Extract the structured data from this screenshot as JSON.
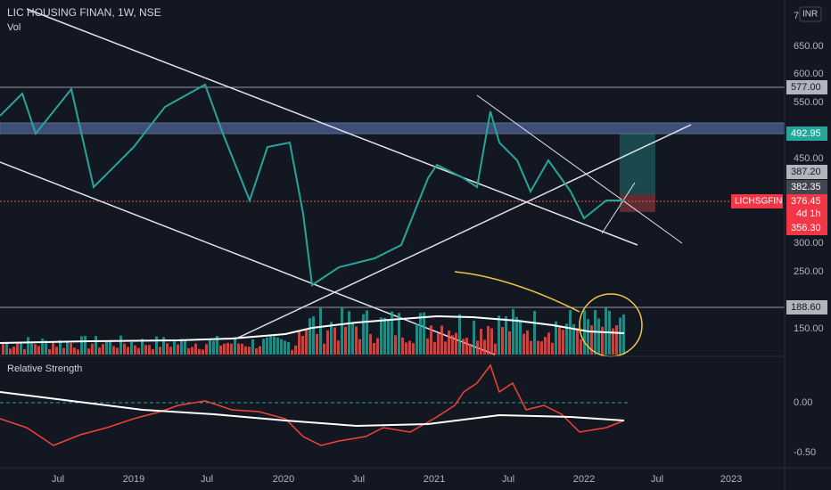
{
  "header": {
    "symbol": "LIC HOUSING FINAN, 1W, NSE",
    "volume": "Vol",
    "indicator": "Relative Strength",
    "currency": "INR"
  },
  "price_axis": [
    "7",
    "650.00",
    "600.00",
    "550.00",
    "450.00",
    "300.00",
    "250.00",
    "150.00"
  ],
  "price_tags": {
    "upper_line": "577.00",
    "target": "492.95",
    "high": "387.20",
    "mid": "382.35",
    "symbol": "LICHSGFIN",
    "last": "376.45",
    "countdown": "4d 1h",
    "stop": "356.30",
    "lower_line": "188.60"
  },
  "rs_axis": [
    "0.00",
    "-0.50"
  ],
  "time_axis": [
    "Jul",
    "2019",
    "Jul",
    "2020",
    "Jul",
    "2021",
    "Jul",
    "2022",
    "Jul",
    "2023"
  ]
}
